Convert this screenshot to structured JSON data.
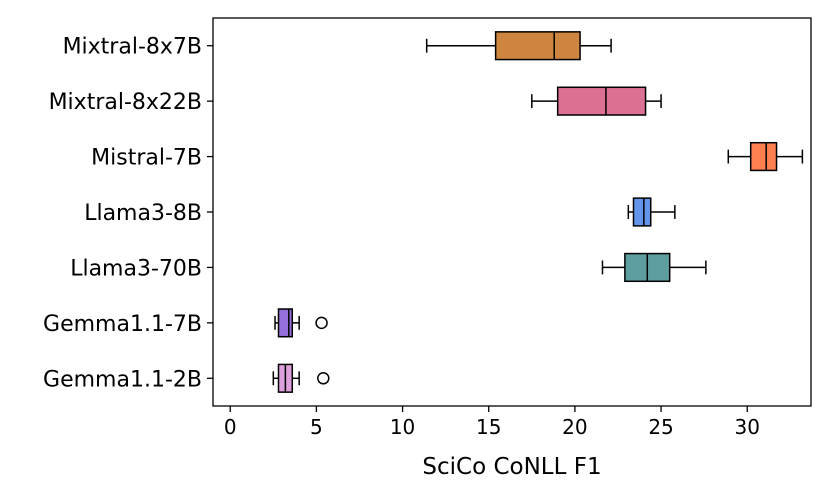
{
  "chart_data": {
    "type": "boxplot",
    "orientation": "horizontal",
    "xlabel": "SciCo CoNLL F1",
    "ylabel": "",
    "title": "",
    "xlim": [
      -1,
      33.7
    ],
    "xticks": [
      0,
      5,
      10,
      15,
      20,
      25,
      30
    ],
    "grid": false,
    "categories": [
      "Mixtral-8x7B",
      "Mixtral-8x22B",
      "Mistral-7B",
      "Llama3-8B",
      "Llama3-70B",
      "Gemma1.1-7B",
      "Gemma1.1-2B"
    ],
    "boxes": [
      {
        "label": "Mixtral-8x7B",
        "whisker_low": 11.4,
        "q1": 15.4,
        "median": 18.8,
        "q3": 20.3,
        "whisker_high": 22.1,
        "outliers": [],
        "color": "#CD853F"
      },
      {
        "label": "Mixtral-8x22B",
        "whisker_low": 17.5,
        "q1": 19.0,
        "median": 21.8,
        "q3": 24.1,
        "whisker_high": 25.0,
        "outliers": [],
        "color": "#DB7093"
      },
      {
        "label": "Mistral-7B",
        "whisker_low": 28.9,
        "q1": 30.2,
        "median": 31.1,
        "q3": 31.7,
        "whisker_high": 33.2,
        "outliers": [],
        "color": "#FF7F50"
      },
      {
        "label": "Llama3-8B",
        "whisker_low": 23.1,
        "q1": 23.4,
        "median": 24.0,
        "q3": 24.4,
        "whisker_high": 25.8,
        "outliers": [],
        "color": "#6495ED"
      },
      {
        "label": "Llama3-70B",
        "whisker_low": 21.6,
        "q1": 22.9,
        "median": 24.2,
        "q3": 25.5,
        "whisker_high": 27.6,
        "outliers": [],
        "color": "#5F9EA0"
      },
      {
        "label": "Gemma1.1-7B",
        "whisker_low": 2.6,
        "q1": 2.8,
        "median": 3.4,
        "q3": 3.6,
        "whisker_high": 4.0,
        "outliers": [
          5.3
        ],
        "color": "#9370DB"
      },
      {
        "label": "Gemma1.1-2B",
        "whisker_low": 2.5,
        "q1": 2.8,
        "median": 3.2,
        "q3": 3.6,
        "whisker_high": 4.0,
        "outliers": [
          5.4
        ],
        "color": "#DDA0DD"
      }
    ]
  }
}
